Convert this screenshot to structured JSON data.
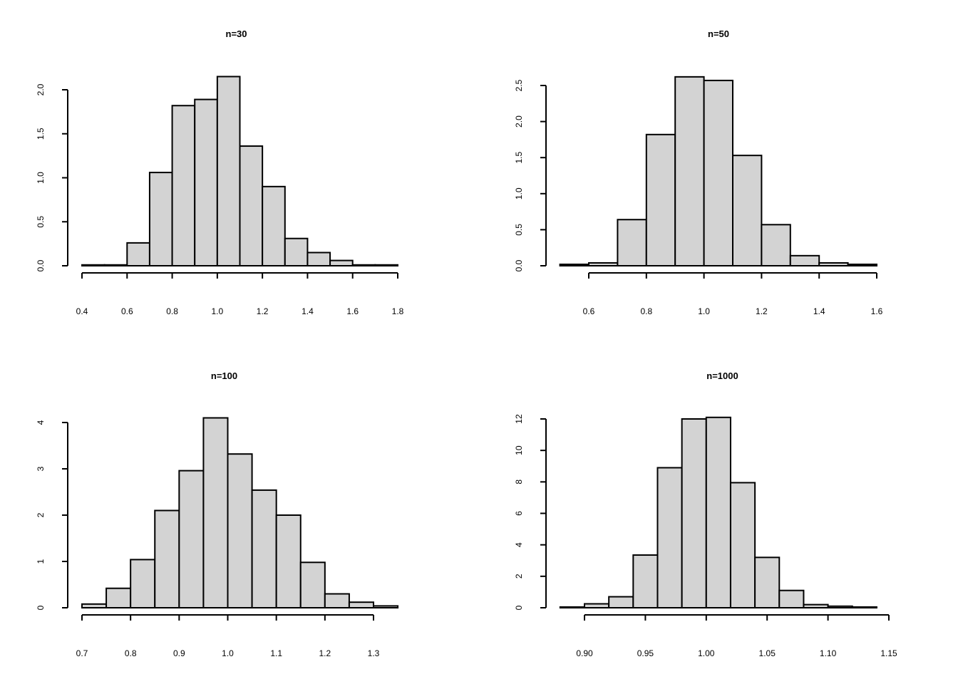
{
  "colors": {
    "bar_fill": "#d3d3d3",
    "bar_stroke": "#000000",
    "background": "#ffffff"
  },
  "chart_data": [
    {
      "type": "bar",
      "title": "n=30",
      "xlabel": "",
      "ylabel": "",
      "bin_edges": [
        0.4,
        0.5,
        0.6,
        0.7,
        0.8,
        0.9,
        1.0,
        1.1,
        1.2,
        1.3,
        1.4,
        1.5,
        1.6,
        1.7,
        1.8
      ],
      "values": [
        0.01,
        0.01,
        0.26,
        1.06,
        1.82,
        1.89,
        2.15,
        1.36,
        0.9,
        0.31,
        0.15,
        0.06,
        0.01,
        0.01
      ],
      "xlim": [
        0.4,
        1.8
      ],
      "ylim": [
        0,
        2.0
      ],
      "xticks": [
        "0.4",
        "0.6",
        "0.8",
        "1.0",
        "1.2",
        "1.4",
        "1.6",
        "1.8"
      ],
      "yticks": [
        "0.0",
        "0.5",
        "1.0",
        "1.5",
        "2.0"
      ],
      "grid": false
    },
    {
      "type": "bar",
      "title": "n=50",
      "xlabel": "",
      "ylabel": "",
      "bin_edges": [
        0.5,
        0.6,
        0.7,
        0.8,
        0.9,
        1.0,
        1.1,
        1.2,
        1.3,
        1.4,
        1.5,
        1.6
      ],
      "values": [
        0.02,
        0.04,
        0.64,
        1.82,
        2.62,
        2.57,
        1.53,
        0.57,
        0.14,
        0.04,
        0.02
      ],
      "xlim": [
        0.6,
        1.6
      ],
      "ylim": [
        0,
        2.5
      ],
      "xticks": [
        "0.6",
        "0.8",
        "1.0",
        "1.2",
        "1.4",
        "1.6"
      ],
      "yticks": [
        "0.0",
        "0.5",
        "1.0",
        "1.5",
        "2.0",
        "2.5"
      ],
      "grid": false
    },
    {
      "type": "bar",
      "title": "n=100",
      "xlabel": "",
      "ylabel": "",
      "bin_edges": [
        0.7,
        0.75,
        0.8,
        0.85,
        0.9,
        0.95,
        1.0,
        1.05,
        1.1,
        1.15,
        1.2,
        1.25,
        1.3,
        1.35
      ],
      "values": [
        0.08,
        0.42,
        1.04,
        2.1,
        2.96,
        4.1,
        3.32,
        2.54,
        2.0,
        0.98,
        0.3,
        0.12,
        0.04
      ],
      "xlim": [
        0.7,
        1.3
      ],
      "ylim": [
        0,
        4
      ],
      "xticks": [
        "0.7",
        "0.8",
        "0.9",
        "1.0",
        "1.1",
        "1.2",
        "1.3"
      ],
      "yticks": [
        "0",
        "1",
        "2",
        "3",
        "4"
      ],
      "grid": false
    },
    {
      "type": "bar",
      "title": "n=1000",
      "xlabel": "",
      "ylabel": "",
      "bin_edges": [
        0.88,
        0.9,
        0.92,
        0.94,
        0.96,
        0.98,
        1.0,
        1.02,
        1.04,
        1.06,
        1.08,
        1.1,
        1.12,
        1.14
      ],
      "values": [
        0.05,
        0.25,
        0.7,
        3.35,
        8.9,
        12.0,
        12.1,
        7.95,
        3.2,
        1.1,
        0.2,
        0.1,
        0.05
      ],
      "xlim": [
        0.9,
        1.15
      ],
      "ylim": [
        0,
        12
      ],
      "xticks": [
        "0.90",
        "0.95",
        "1.00",
        "1.05",
        "1.10",
        "1.15"
      ],
      "yticks": [
        "0",
        "2",
        "4",
        "6",
        "8",
        "10",
        "12"
      ],
      "grid": false
    }
  ]
}
